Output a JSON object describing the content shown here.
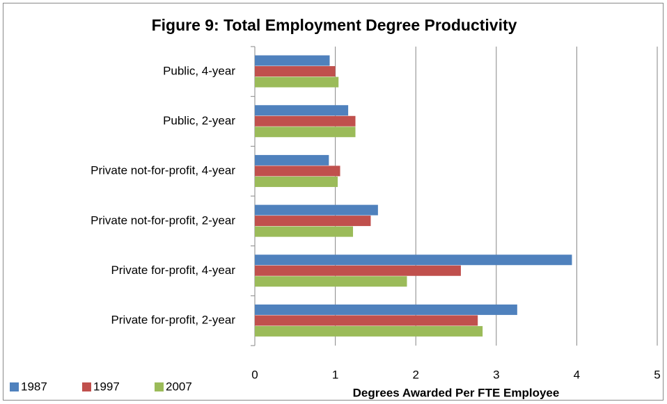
{
  "chart_data": {
    "type": "bar",
    "orientation": "horizontal",
    "title": "Figure 9: Total Employment Degree Productivity",
    "x_label": "Degrees Awarded Per FTE Employee",
    "categories": [
      "Public, 4-year",
      "Public, 2-year",
      "Private not-for-profit, 4-year",
      "Private not-for-profit, 2-year",
      "Private for-profit, 4-year",
      "Private for-profit, 2-year"
    ],
    "series": [
      {
        "name": "1987",
        "color": "#4f81bd",
        "values": [
          0.93,
          1.16,
          0.92,
          1.53,
          3.94,
          3.26
        ]
      },
      {
        "name": "1997",
        "color": "#c0504d",
        "values": [
          1.0,
          1.25,
          1.06,
          1.44,
          2.56,
          2.77
        ]
      },
      {
        "name": "2007",
        "color": "#9bbb59",
        "values": [
          1.04,
          1.25,
          1.03,
          1.22,
          1.89,
          2.83
        ]
      }
    ],
    "xlim": [
      0,
      5
    ],
    "xticks": [
      0,
      1,
      2,
      3,
      4,
      5
    ],
    "grid": true,
    "legend": "bottom-left"
  }
}
